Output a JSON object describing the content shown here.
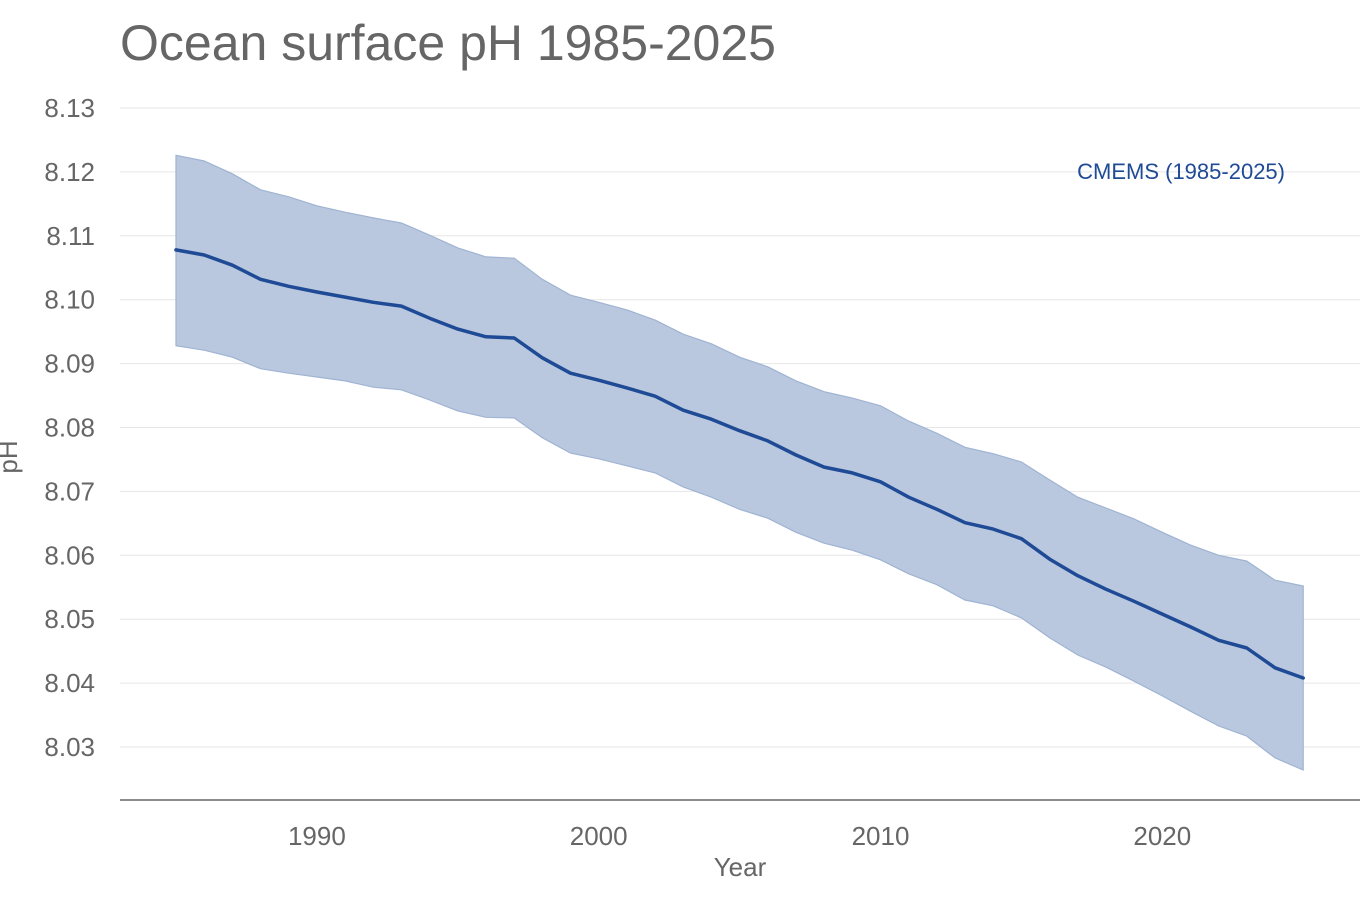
{
  "chart_data": {
    "type": "line",
    "title": "Ocean surface pH 1985-2025",
    "xlabel": "Year",
    "ylabel": "pH",
    "xlim": [
      1983,
      2027
    ],
    "ylim": [
      8.022,
      8.133
    ],
    "x_ticks": [
      1990,
      2000,
      2010,
      2020
    ],
    "y_ticks": [
      "8.03",
      "8.04",
      "8.05",
      "8.06",
      "8.07",
      "8.08",
      "8.09",
      "8.10",
      "8.11",
      "8.12",
      "8.13"
    ],
    "grid": "horizontal",
    "legend_position": "top-right",
    "x": [
      1985,
      1986,
      1987,
      1988,
      1989,
      1990,
      1991,
      1992,
      1993,
      1994,
      1995,
      1996,
      1997,
      1998,
      1999,
      2000,
      2001,
      2002,
      2003,
      2004,
      2005,
      2006,
      2007,
      2008,
      2009,
      2010,
      2011,
      2012,
      2013,
      2014,
      2015,
      2016,
      2017,
      2018,
      2019,
      2020,
      2021,
      2022,
      2023,
      2024,
      2025
    ],
    "series": [
      {
        "name": "CMEMS (1985-2025)",
        "color": "#1f4a96",
        "band_color": "#b9c8de",
        "values": [
          8.1078,
          8.107,
          8.1054,
          8.1032,
          8.1021,
          8.1012,
          8.1004,
          8.0996,
          8.099,
          8.0971,
          8.0954,
          8.0942,
          8.094,
          8.0909,
          8.0885,
          8.0874,
          8.0862,
          8.0849,
          8.0827,
          8.0813,
          8.0795,
          8.0779,
          8.0757,
          8.0738,
          8.0729,
          8.0715,
          8.0691,
          8.0672,
          8.0651,
          8.0641,
          8.0626,
          8.0594,
          8.0568,
          8.0547,
          8.0528,
          8.0508,
          8.0488,
          8.0467,
          8.0455,
          8.0424,
          8.0408
        ],
        "upper": [
          8.1226,
          8.1217,
          8.1197,
          8.1172,
          8.1161,
          8.1147,
          8.1137,
          8.1128,
          8.112,
          8.1101,
          8.1081,
          8.1067,
          8.1065,
          8.1032,
          8.1007,
          8.0996,
          8.0984,
          8.0968,
          8.0946,
          8.0931,
          8.091,
          8.0895,
          8.0873,
          8.0856,
          8.0846,
          8.0834,
          8.081,
          8.0791,
          8.0769,
          8.0759,
          8.0746,
          8.0718,
          8.0691,
          8.0674,
          8.0657,
          8.0636,
          8.0616,
          8.06,
          8.0591,
          8.0561,
          8.0552
        ],
        "lower": [
          8.0928,
          8.0921,
          8.091,
          8.0892,
          8.0885,
          8.0879,
          8.0873,
          8.0863,
          8.0859,
          8.0843,
          8.0826,
          8.0816,
          8.0815,
          8.0784,
          8.076,
          8.0751,
          8.074,
          8.0729,
          8.0707,
          8.0691,
          8.0672,
          8.0658,
          8.0636,
          8.0619,
          8.0608,
          8.0593,
          8.0571,
          8.0554,
          8.053,
          8.0521,
          8.0502,
          8.0471,
          8.0444,
          8.0425,
          8.0403,
          8.038,
          8.0356,
          8.0333,
          8.0317,
          8.0283,
          8.0264
        ]
      }
    ]
  }
}
